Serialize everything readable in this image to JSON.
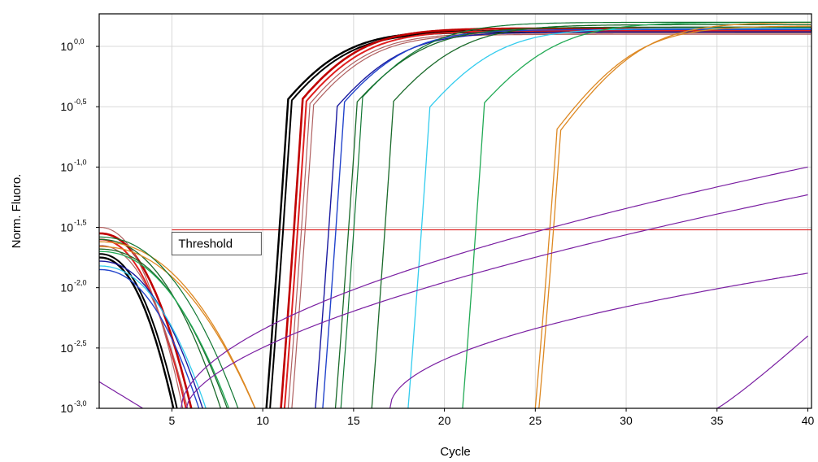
{
  "chart_data": {
    "type": "line",
    "title": "",
    "xlabel": "Cycle",
    "ylabel": "Norm. Fluoro.",
    "xlim": [
      1,
      40.2
    ],
    "ylim_log10": [
      -3.0,
      0.27
    ],
    "y_scale": "log10",
    "grid": true,
    "x_ticks": [
      5,
      10,
      15,
      20,
      25,
      30,
      35,
      40
    ],
    "x_tick_labels": [
      "5",
      "10",
      "15",
      "20",
      "25",
      "30",
      "35",
      "40"
    ],
    "y_ticks_log10": [
      0.0,
      -0.5,
      -1.0,
      -1.5,
      -2.0,
      -2.5,
      -3.0
    ],
    "y_tick_labels": [
      {
        "base": "10",
        "exp": "0,0"
      },
      {
        "base": "10",
        "exp": "-0,5"
      },
      {
        "base": "10",
        "exp": "-1,0"
      },
      {
        "base": "10",
        "exp": "-1,5"
      },
      {
        "base": "10",
        "exp": "-2,0"
      },
      {
        "base": "10",
        "exp": "-2,5"
      },
      {
        "base": "10",
        "exp": "-3,0"
      }
    ],
    "threshold": {
      "label": "Threshold",
      "log10_value": -1.52,
      "color": "#e03030"
    },
    "curves": [
      {
        "kind": "amp",
        "color": "#000000",
        "start": 1,
        "base0": -1.75,
        "decay_to": 5.3,
        "cross": 10.2,
        "mid": 13.2,
        "k": 0.55,
        "plateau": 0.13,
        "width": 2.4
      },
      {
        "kind": "amp",
        "color": "#000000",
        "start": 1,
        "base0": -1.72,
        "decay_to": 5.5,
        "cross": 10.4,
        "mid": 13.4,
        "k": 0.55,
        "plateau": 0.12,
        "width": 2.0
      },
      {
        "kind": "amp",
        "color": "#c00000",
        "start": 1,
        "base0": -1.55,
        "decay_to": 6.3,
        "cross": 11.0,
        "mid": 14.1,
        "k": 0.55,
        "plateau": 0.15,
        "width": 2.6
      },
      {
        "kind": "amp",
        "color": "#e02020",
        "start": 1,
        "base0": -1.6,
        "decay_to": 6.0,
        "cross": 11.2,
        "mid": 14.3,
        "k": 0.55,
        "plateau": 0.13,
        "width": 2.0
      },
      {
        "kind": "amp",
        "color": "#b06060",
        "start": 1,
        "base0": -1.5,
        "decay_to": 5.8,
        "cross": 11.4,
        "mid": 14.5,
        "k": 0.55,
        "plateau": 0.11,
        "width": 1.2
      },
      {
        "kind": "amp",
        "color": "#b06060",
        "start": 1,
        "base0": -1.65,
        "decay_to": 6.1,
        "cross": 11.6,
        "mid": 14.7,
        "k": 0.55,
        "plateau": 0.1,
        "width": 1.2
      },
      {
        "kind": "amp",
        "color": "#1a1aa0",
        "start": 1,
        "base0": -1.78,
        "decay_to": 7.0,
        "cross": 12.9,
        "mid": 16.3,
        "k": 0.52,
        "plateau": 0.12,
        "width": 1.4
      },
      {
        "kind": "amp",
        "color": "#2244cc",
        "start": 1,
        "base0": -1.85,
        "decay_to": 6.8,
        "cross": 13.3,
        "mid": 16.6,
        "k": 0.52,
        "plateau": 0.14,
        "width": 1.4
      },
      {
        "kind": "amp",
        "color": "#1a6a2a",
        "start": 1,
        "base0": -1.6,
        "decay_to": 8.0,
        "cross": 14.0,
        "mid": 17.5,
        "k": 0.5,
        "plateau": 0.16,
        "width": 1.3
      },
      {
        "kind": "amp",
        "color": "#1a6a2a",
        "start": 1,
        "base0": -1.68,
        "decay_to": 8.4,
        "cross": 16.0,
        "mid": 19.6,
        "k": 0.5,
        "plateau": 0.18,
        "width": 1.3
      },
      {
        "kind": "amp",
        "color": "#33ccee",
        "start": 1,
        "base0": -1.82,
        "decay_to": 7.2,
        "cross": 18.0,
        "mid": 21.7,
        "k": 0.5,
        "plateau": 0.15,
        "width": 1.3
      },
      {
        "kind": "amp",
        "color": "#22aa55",
        "start": 1,
        "base0": -1.7,
        "decay_to": 8.5,
        "cross": 21.0,
        "mid": 24.9,
        "k": 0.48,
        "plateau": 0.2,
        "width": 1.3
      },
      {
        "kind": "amp",
        "color": "#dd8822",
        "start": 1,
        "base0": -1.62,
        "decay_to": 10.0,
        "cross": 25.0,
        "mid": 29.7,
        "k": 0.52,
        "plateau": 0.17,
        "width": 1.3
      },
      {
        "kind": "amp",
        "color": "#dd8822",
        "start": 1,
        "base0": -1.66,
        "decay_to": 10.0,
        "cross": 25.2,
        "mid": 30.1,
        "k": 0.52,
        "plateau": 0.2,
        "width": 1.3
      },
      {
        "kind": "amp",
        "color": "#117733",
        "start": 1,
        "base0": -1.58,
        "decay_to": 9.0,
        "cross": 14.3,
        "mid": 17.8,
        "k": 0.5,
        "plateau": 0.2,
        "width": 1.2
      },
      {
        "kind": "drift",
        "color": "#7a1fa2",
        "x0": 5.5,
        "x1": 40,
        "y_start": -3.0,
        "y_end": -1.0,
        "shape": 0.55,
        "width": 1.2
      },
      {
        "kind": "drift",
        "color": "#7a1fa2",
        "x0": 5.8,
        "x1": 40,
        "y_start": -3.0,
        "y_end": -1.23,
        "shape": 0.6,
        "width": 1.2
      },
      {
        "kind": "drift",
        "color": "#7a1fa2",
        "x0": 17.0,
        "x1": 40,
        "y_start": -3.0,
        "y_end": -1.88,
        "shape": 0.5,
        "width": 1.2
      },
      {
        "kind": "drift",
        "color": "#7a1fa2",
        "x0": 35.0,
        "x1": 40,
        "y_start": -3.0,
        "y_end": -2.4,
        "shape": 1.1,
        "width": 1.2
      },
      {
        "kind": "drift",
        "color": "#7a1fa2",
        "x0": 1.0,
        "x1": 3.4,
        "y_start": -2.78,
        "y_end": -3.0,
        "shape": 1.0,
        "width": 1.2
      }
    ]
  }
}
